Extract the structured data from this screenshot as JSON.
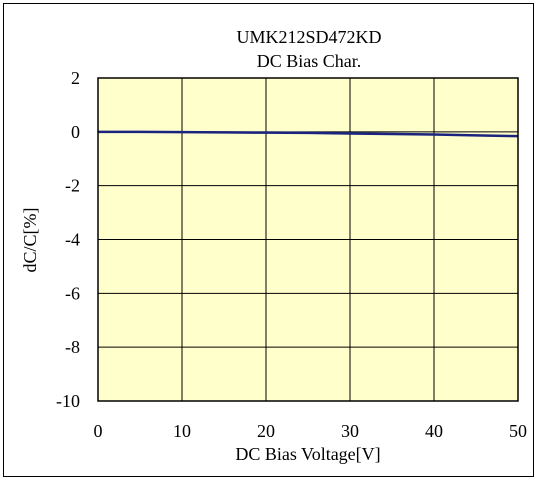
{
  "chart_data": {
    "type": "line",
    "title": "UMK212SD472KD",
    "subtitle": "DC Bias Char.",
    "xlabel": "DC Bias Voltage[V]",
    "ylabel": "dC/C[%]",
    "xlim": [
      0,
      50
    ],
    "ylim": [
      -10,
      2
    ],
    "xticks": [
      0,
      10,
      20,
      30,
      40,
      50
    ],
    "yticks": [
      2,
      0,
      -2,
      -4,
      -6,
      -8,
      -10
    ],
    "grid": true,
    "colors": {
      "plot_bg": "#ffffcc",
      "line": "#1a237e",
      "grid": "#000000"
    },
    "series": [
      {
        "x": [
          0,
          5,
          10,
          15,
          20,
          25,
          30,
          35,
          40,
          45,
          50
        ],
        "values": [
          0.0,
          0.0,
          -0.01,
          -0.02,
          -0.03,
          -0.04,
          -0.06,
          -0.08,
          -0.1,
          -0.13,
          -0.16
        ]
      }
    ]
  }
}
